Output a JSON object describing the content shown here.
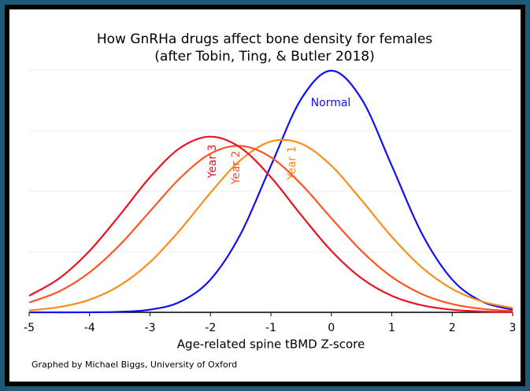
{
  "chart_data": {
    "type": "line",
    "title": "How GnRHa drugs affect bone density for females",
    "subtitle": "(after Tobin, Ting, & Butler 2018)",
    "x_label": "Age-related spine tBMD Z-score",
    "note": "Graphed by Michael Biggs, University of Oxford",
    "x": [
      -5,
      -4.5,
      -4,
      -3.5,
      -3,
      -2.5,
      -2,
      -1.5,
      -1,
      -0.5,
      0,
      0.5,
      1,
      1.5,
      2,
      2.5,
      3
    ],
    "series": [
      {
        "name": "Normal",
        "color": "#1010f0",
        "values": [
          0.0,
          0.0,
          0.0001,
          0.0009,
          0.0044,
          0.0175,
          0.054,
          0.1295,
          0.242,
          0.3521,
          0.3989,
          0.3521,
          0.242,
          0.1295,
          0.054,
          0.0175,
          0.0044
        ]
      },
      {
        "name": "Year 1",
        "color": "#ff8c1a",
        "values": [
          0.0032,
          0.0087,
          0.0209,
          0.0444,
          0.0829,
          0.1364,
          0.1974,
          0.2515,
          0.2821,
          0.2785,
          0.2421,
          0.1851,
          0.1247,
          0.074,
          0.0386,
          0.0177,
          0.0072
        ]
      },
      {
        "name": "Year 2",
        "color": "#ff5522",
        "values": [
          0.0162,
          0.0347,
          0.0659,
          0.1113,
          0.1668,
          0.2219,
          0.262,
          0.2748,
          0.2559,
          0.2116,
          0.1554,
          0.1012,
          0.0585,
          0.0301,
          0.0137,
          0.0056,
          0.002
        ]
      },
      {
        "name": "Year 3",
        "color": "#ee1122",
        "values": [
          0.0273,
          0.0562,
          0.1015,
          0.1606,
          0.223,
          0.2716,
          0.29,
          0.2716,
          0.223,
          0.1606,
          0.1015,
          0.0562,
          0.0273,
          0.0116,
          0.0043,
          0.0014,
          0.0004
        ]
      }
    ],
    "xlim": [
      -5,
      3
    ],
    "xticks": [
      -5,
      -4,
      -3,
      -2,
      -1,
      0,
      1,
      2,
      3
    ],
    "ylim": [
      0,
      0.4
    ],
    "yticks": [
      0,
      0.1,
      0.2,
      0.3,
      0.4
    ],
    "grid": true
  }
}
